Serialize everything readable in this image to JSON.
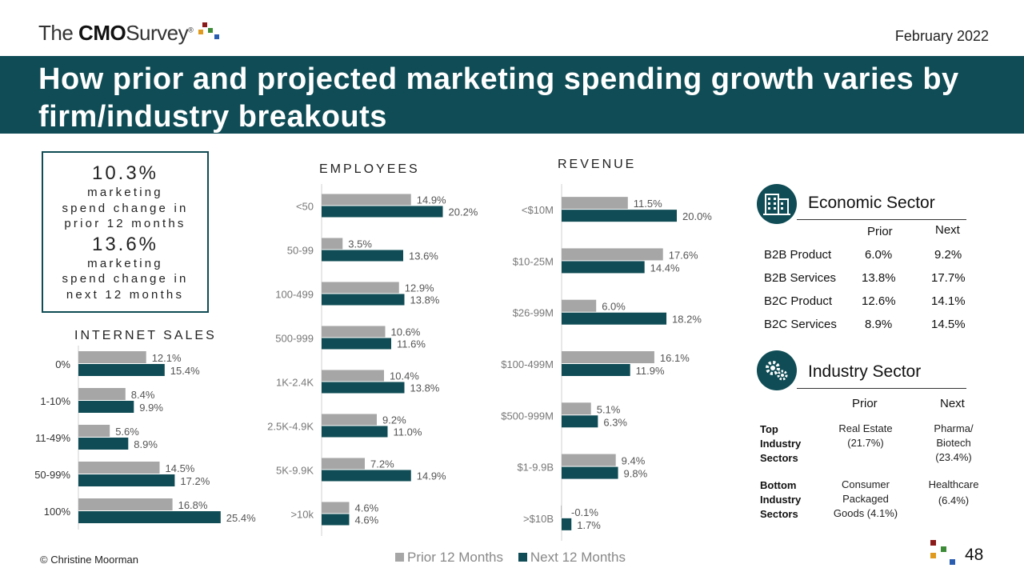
{
  "header": {
    "logo_the": "The",
    "logo_cmo": "CMO",
    "logo_survey": "Survey",
    "logo_reg": "®",
    "date": "February 2022",
    "title": "How prior and projected marketing spending growth varies by firm/industry breakouts"
  },
  "kpi": {
    "prior_value": "10.3%",
    "prior_l1": "marketing",
    "prior_l2": "spend change in",
    "prior_l3": "prior 12 months",
    "next_value": "13.6%",
    "next_l1": "marketing",
    "next_l2": "spend change in",
    "next_l3": "next 12 months"
  },
  "colors": {
    "prior": "#a6a6a6",
    "next": "#0f4c55",
    "accent": "#0f4c55"
  },
  "legend": {
    "prior": "Prior 12 Months",
    "next": "Next 12 Months"
  },
  "chart_data": [
    {
      "type": "bar",
      "orientation": "horizontal",
      "title": "INTERNET SALES",
      "categories": [
        "0%",
        "1-10%",
        "11-49%",
        "50-99%",
        "100%"
      ],
      "series": [
        {
          "name": "Prior 12 Months",
          "values": [
            12.1,
            8.4,
            5.6,
            14.5,
            16.8
          ]
        },
        {
          "name": "Next 12 Months",
          "values": [
            15.4,
            9.9,
            8.9,
            17.2,
            25.4
          ]
        }
      ]
    },
    {
      "type": "bar",
      "orientation": "horizontal",
      "title": "EMPLOYEES",
      "categories": [
        "<50",
        "50-99",
        "100-499",
        "500-999",
        "1K-2.4K",
        "2.5K-4.9K",
        "5K-9.9K",
        ">10k"
      ],
      "series": [
        {
          "name": "Prior 12 Months",
          "values": [
            14.9,
            3.5,
            12.9,
            10.6,
            10.4,
            9.2,
            7.2,
            4.6
          ]
        },
        {
          "name": "Next 12 Months",
          "values": [
            20.2,
            13.6,
            13.8,
            11.6,
            13.8,
            11.0,
            14.9,
            4.6
          ]
        }
      ]
    },
    {
      "type": "bar",
      "orientation": "horizontal",
      "title": "REVENUE",
      "categories": [
        "<$10M",
        "$10-25M",
        "$26-99M",
        "$100-499M",
        "$500-999M",
        "$1-9.9B",
        ">$10B"
      ],
      "series": [
        {
          "name": "Prior 12 Months",
          "values": [
            11.5,
            17.6,
            6.0,
            16.1,
            5.1,
            9.4,
            -0.1
          ]
        },
        {
          "name": "Next 12 Months",
          "values": [
            20.0,
            14.4,
            18.2,
            11.9,
            6.3,
            9.8,
            1.7
          ]
        }
      ]
    }
  ],
  "economic": {
    "title": "Economic Sector",
    "icon": "buildings-icon",
    "col_prior": "Prior",
    "col_next": "Next",
    "rows": [
      {
        "label": "B2B Product",
        "prior": "6.0%",
        "next": "9.2%"
      },
      {
        "label": "B2B Services",
        "prior": "13.8%",
        "next": "17.7%"
      },
      {
        "label": "B2C Product",
        "prior": "12.6%",
        "next": "14.1%"
      },
      {
        "label": "B2C Services",
        "prior": "8.9%",
        "next": "14.5%"
      }
    ]
  },
  "industry": {
    "title": "Industry Sector",
    "icon": "gears-icon",
    "col_prior": "Prior",
    "col_next": "Next",
    "top_label_1": "Top",
    "top_label_2": "Industry",
    "top_label_3": "Sectors",
    "top_prior_1": "Real Estate",
    "top_prior_2": "(21.7%)",
    "top_next_1": "Pharma/",
    "top_next_2": "Biotech",
    "top_next_3": "(23.4%)",
    "bottom_label_1": "Bottom",
    "bottom_label_2": "Industry",
    "bottom_label_3": "Sectors",
    "bottom_prior_1": "Consumer",
    "bottom_prior_2": "Packaged",
    "bottom_prior_3": "Goods (4.1%)",
    "bottom_next_1": "Healthcare",
    "bottom_next_2": "(6.4%)"
  },
  "footer": {
    "copyright": "© Christine Moorman",
    "page": "48"
  }
}
